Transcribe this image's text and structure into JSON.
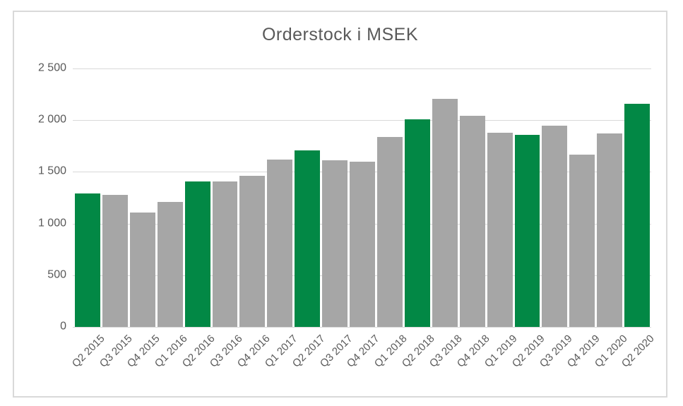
{
  "chart_data": {
    "type": "bar",
    "title": "Orderstock i MSEK",
    "xlabel": "",
    "ylabel": "",
    "categories": [
      "Q2 2015",
      "Q3 2015",
      "Q4 2015",
      "Q1 2016",
      "Q2 2016",
      "Q3 2016",
      "Q4 2016",
      "Q1 2017",
      "Q2 2017",
      "Q3 2017",
      "Q4 2017",
      "Q1 2018",
      "Q2 2018",
      "Q3 2018",
      "Q4 2018",
      "Q1 2019",
      "Q2 2019",
      "Q3 2019",
      "Q4 2019",
      "Q1 2020",
      "Q2 2020"
    ],
    "values": [
      1290,
      1280,
      1105,
      1210,
      1405,
      1405,
      1460,
      1620,
      1710,
      1615,
      1600,
      1835,
      2010,
      2205,
      2045,
      1880,
      1860,
      1950,
      1670,
      1875,
      2160
    ],
    "highlight_indices": [
      0,
      4,
      8,
      12,
      16,
      20
    ],
    "highlighted_categories": [
      "Q2 2015",
      "Q2 2016",
      "Q2 2017",
      "Q2 2018",
      "Q2 2019",
      "Q2 2020"
    ],
    "ylim": [
      0,
      2500
    ],
    "y_ticks": [
      {
        "label": "2 500",
        "value": 2500
      },
      {
        "label": "2 000",
        "value": 2000
      },
      {
        "label": "1 500",
        "value": 1500
      },
      {
        "label": "1 000",
        "value": 1000
      },
      {
        "label": "500",
        "value": 500
      },
      {
        "label": "0",
        "value": 0
      }
    ],
    "grid": "horizontal",
    "legend": "none",
    "x_tick_rotation_deg": 45,
    "colors": {
      "highlight_bar": "#028845",
      "default_bar": "#a6a6a6",
      "gridline": "#d9d9d9",
      "frame_border": "#d9d9d9",
      "text": "#595959",
      "background": "#ffffff"
    }
  }
}
